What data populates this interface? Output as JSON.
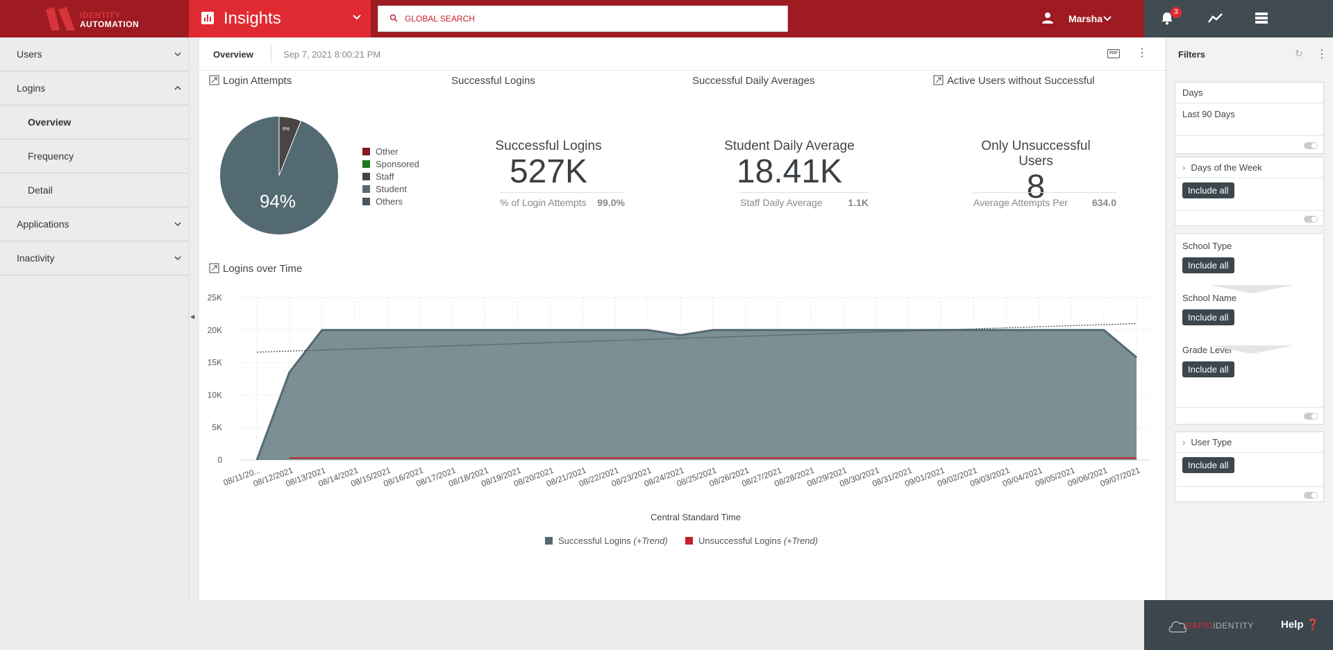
{
  "header": {
    "logo_line1": "IDENTITY",
    "logo_line2": "AUTOMATION",
    "app_title": "Insights",
    "search_placeholder": "GLOBAL SEARCH",
    "user_name": "Marsha",
    "notification_count": "3"
  },
  "sidebar": {
    "items": [
      {
        "label": "Users",
        "expanded": false
      },
      {
        "label": "Logins",
        "expanded": true
      },
      {
        "label": "Overview",
        "sub": true,
        "active": true
      },
      {
        "label": "Frequency",
        "sub": true
      },
      {
        "label": "Detail",
        "sub": true
      },
      {
        "label": "Applications",
        "expanded": false
      },
      {
        "label": "Inactivity",
        "expanded": false
      }
    ]
  },
  "subheader": {
    "tab": "Overview",
    "timestamp": "Sep 7, 2021 8:00:21 PM",
    "pdf_label": "PDF"
  },
  "panels": {
    "login_attempts": "Login Attempts",
    "successful_logins": "Successful Logins",
    "daily_averages": "Successful Daily Averages",
    "active_users": "Active Users without Successful",
    "logins_over_time": "Logins over Time"
  },
  "pie": {
    "big_label": "94%",
    "small_label": "6%",
    "legend": [
      {
        "name": "Other",
        "color": "#8b1a1a"
      },
      {
        "name": "Sponsored",
        "color": "#1a7a1a"
      },
      {
        "name": "Staff",
        "color": "#4a4545"
      },
      {
        "name": "Student",
        "color": "#546a72"
      },
      {
        "name": "Others",
        "color": "#4b5561"
      }
    ]
  },
  "kpis": {
    "successful": {
      "label": "Successful Logins",
      "value": "527K",
      "sub_label": "% of Login Attempts",
      "sub_value": "99.0%"
    },
    "daily": {
      "label": "Student Daily Average",
      "value": "18.41K",
      "sub_label": "Staff Daily Average",
      "sub_value": "1.1K"
    },
    "unsuccessful": {
      "label": "Only Unsuccessful Users",
      "value": "8",
      "sub_label": "Average Attempts Per",
      "sub_value": "634.0"
    }
  },
  "chart_data": {
    "type": "area",
    "xlabel": "Central Standard Time",
    "ylabel": "",
    "ylim": [
      0,
      25000
    ],
    "yticks": [
      "0",
      "5K",
      "10K",
      "15K",
      "20K",
      "25K"
    ],
    "x": [
      "08/11/20...",
      "08/12/2021",
      "08/13/2021",
      "08/14/2021",
      "08/15/2021",
      "08/16/2021",
      "08/17/2021",
      "08/18/2021",
      "08/19/2021",
      "08/20/2021",
      "08/21/2021",
      "08/22/2021",
      "08/23/2021",
      "08/24/2021",
      "08/25/2021",
      "08/26/2021",
      "08/27/2021",
      "08/28/2021",
      "08/29/2021",
      "08/30/2021",
      "08/31/2021",
      "09/01/2021",
      "09/02/2021",
      "09/03/2021",
      "09/04/2021",
      "09/05/2021",
      "09/06/2021",
      "09/07/2021"
    ],
    "series": [
      {
        "name": "Successful Logins",
        "color": "#546a72",
        "values": [
          0,
          13500,
          20000,
          20000,
          20000,
          20000,
          20000,
          20000,
          20000,
          20000,
          20000,
          20000,
          20000,
          19200,
          20000,
          20000,
          20000,
          20000,
          20000,
          20000,
          20000,
          20000,
          20000,
          20000,
          20000,
          20000,
          20000,
          15800
        ]
      },
      {
        "name": "Unsuccessful Logins",
        "color": "#c32129",
        "values": [
          0,
          300,
          300,
          300,
          300,
          300,
          300,
          300,
          300,
          300,
          300,
          300,
          300,
          300,
          300,
          300,
          300,
          300,
          300,
          300,
          300,
          300,
          300,
          300,
          300,
          300,
          300,
          300
        ]
      }
    ],
    "trend": {
      "start": 16600,
      "end": 21000
    },
    "legend": [
      {
        "name": "Successful Logins",
        "suffix": "(+Trend)",
        "color": "#546a72"
      },
      {
        "name": "Unsuccessful Logins",
        "suffix": "(+Trend)",
        "color": "#c32129"
      }
    ],
    "grid": true,
    "legend_position": "bottom"
  },
  "filters": {
    "title": "Filters",
    "days_label": "Days",
    "days_value": "Last 90 Days",
    "days_of_week": "Days of the Week",
    "school_type": "School Type",
    "school_name": "School Name",
    "grade_level": "Grade Level",
    "user_type": "User Type",
    "include_all": "Include all"
  },
  "footer": {
    "brand_red": "RAPID",
    "brand_grey": "IDENTITY",
    "help": "Help"
  }
}
